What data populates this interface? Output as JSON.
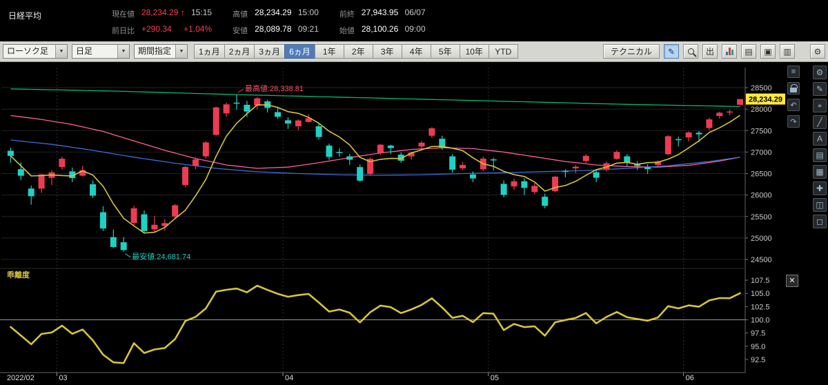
{
  "header": {
    "title": "日経平均",
    "current": {
      "label": "現在値",
      "value": "28,234.29",
      "arrow": "↑",
      "time": "15:15"
    },
    "change": {
      "label": "前日比",
      "value": "+290.34",
      "pct": "+1.04%"
    },
    "high": {
      "label": "高値",
      "value": "28,234.29",
      "time": "15:00"
    },
    "low": {
      "label": "安値",
      "value": "28,089.78",
      "time": "09:21"
    },
    "prev_close": {
      "label": "前終",
      "value": "27,943.95",
      "time": "06/07"
    },
    "open": {
      "label": "始値",
      "value": "28,100.26",
      "time": "09:00"
    }
  },
  "toolbar": {
    "chart_type": "ローソク足",
    "timeframe": "日足",
    "period_picker": "期間指定",
    "periods": [
      "1ヵ月",
      "2ヵ月",
      "3ヵ月",
      "6ヵ月",
      "1年",
      "2年",
      "3年",
      "4年",
      "5年",
      "10年",
      "YTD"
    ],
    "selected_period": "6ヵ月",
    "technical": "テクニカル"
  },
  "icons": {
    "toolbar": [
      {
        "name": "draw-pencil-icon",
        "glyph": "✎"
      },
      {
        "name": "zoom-icon",
        "glyph": ""
      },
      {
        "name": "popout-icon",
        "glyph": "出"
      },
      {
        "name": "mini-chart-icon",
        "glyph": ""
      },
      {
        "name": "report-icon",
        "glyph": "▤"
      },
      {
        "name": "save-icon",
        "glyph": "▣"
      },
      {
        "name": "print-icon",
        "glyph": "▥"
      },
      {
        "name": "settings-gear-icon",
        "glyph": "⚙"
      }
    ],
    "rail_inner": [
      {
        "name": "menu-icon",
        "glyph": "≡"
      },
      {
        "name": "lock-icon",
        "glyph": ""
      },
      {
        "name": "undo-icon",
        "glyph": "↶"
      },
      {
        "name": "redo-icon",
        "glyph": "↷"
      }
    ],
    "rail_outer": [
      {
        "name": "settings-gear-icon",
        "glyph": "⚙"
      },
      {
        "name": "draw-pencil-icon",
        "glyph": "✎"
      },
      {
        "name": "crosshair-icon",
        "glyph": "⌖"
      },
      {
        "name": "trend-line-icon",
        "glyph": "╱"
      },
      {
        "name": "text-tool-icon",
        "glyph": "A"
      },
      {
        "name": "indicator-icon",
        "glyph": "▤"
      },
      {
        "name": "grid-icon",
        "glyph": "▦"
      },
      {
        "name": "add-icon",
        "glyph": "✚"
      },
      {
        "name": "compare-icon",
        "glyph": "◫"
      },
      {
        "name": "snapshot-icon",
        "glyph": "◻"
      }
    ],
    "sub_close": "✕"
  },
  "colors": {
    "up": "#ef3b52",
    "down": "#1fd1c4",
    "ma_long": "#00b978",
    "ma_mid": "#ff5f9e",
    "ma_blue": "#3a6fd8",
    "ma_short": "#d6c53a",
    "price_tag_bg": "#ffe93d",
    "grid": "#232323",
    "axis": "#666666"
  },
  "chart_data": {
    "type": "candlestick",
    "title": "日経平均 日足 6ヵ月",
    "current_price": 28234.29,
    "y_axis": {
      "ticks": [
        28500,
        28000,
        27500,
        27000,
        26500,
        26000,
        25500,
        25000,
        24500
      ],
      "price_top": 28500,
      "price_bottom": 24500
    },
    "x_axis": {
      "labels": [
        {
          "index": 0,
          "label": "2022/02"
        },
        {
          "index": 5,
          "label": "03"
        },
        {
          "index": 27,
          "label": "04"
        },
        {
          "index": 47,
          "label": "05"
        },
        {
          "index": 66,
          "label": "06"
        }
      ]
    },
    "annotations": {
      "high": {
        "index": 22,
        "price": 28338.81,
        "label": "最高値:28,338.81"
      },
      "low": {
        "index": 11,
        "price": 24681.74,
        "label": "最安値:24,681.74"
      }
    },
    "candles": [
      [
        "02/21",
        27030,
        27100,
        26750,
        26911
      ],
      [
        "02/22",
        26600,
        26760,
        26350,
        26449
      ],
      [
        "02/24",
        26150,
        26220,
        25775,
        25971
      ],
      [
        "02/25",
        26150,
        26490,
        26050,
        26477
      ],
      [
        "02/28",
        26400,
        26580,
        26230,
        26527
      ],
      [
        "03/01",
        26650,
        26890,
        26590,
        26844
      ],
      [
        "03/02",
        26550,
        26640,
        26300,
        26393
      ],
      [
        "03/03",
        26450,
        26680,
        26430,
        26577
      ],
      [
        "03/04",
        26250,
        26340,
        25930,
        25985
      ],
      [
        "03/07",
        25600,
        25740,
        25160,
        25221
      ],
      [
        "03/08",
        25020,
        25200,
        24767,
        24790
      ],
      [
        "03/09",
        24900,
        25020,
        24681.74,
        24717
      ],
      [
        "03/10",
        25350,
        25750,
        25300,
        25690
      ],
      [
        "03/11",
        25550,
        25640,
        25100,
        25162
      ],
      [
        "03/14",
        25200,
        25510,
        25150,
        25307
      ],
      [
        "03/15",
        25280,
        25440,
        25170,
        25346
      ],
      [
        "03/16",
        25500,
        25790,
        25440,
        25762
      ],
      [
        "03/17",
        26230,
        26680,
        26190,
        26652
      ],
      [
        "03/18",
        26680,
        26880,
        26600,
        26827
      ],
      [
        "03/22",
        26900,
        27250,
        26850,
        27224
      ],
      [
        "03/23",
        27400,
        28060,
        27380,
        28040
      ],
      [
        "03/24",
        27900,
        28150,
        27820,
        28110
      ],
      [
        "03/25",
        28150,
        28338.81,
        27990,
        28149
      ],
      [
        "03/28",
        28100,
        28190,
        27820,
        27943
      ],
      [
        "03/29",
        28080,
        28280,
        28000,
        28252
      ],
      [
        "03/30",
        28180,
        28220,
        27920,
        28027
      ],
      [
        "03/31",
        27930,
        28040,
        27770,
        27821
      ],
      [
        "04/01",
        27740,
        27810,
        27540,
        27665
      ],
      [
        "04/04",
        27600,
        27760,
        27510,
        27736
      ],
      [
        "04/05",
        27700,
        27880,
        27690,
        27787
      ],
      [
        "04/06",
        27600,
        27650,
        27290,
        27350
      ],
      [
        "04/07",
        27150,
        27200,
        26820,
        26888
      ],
      [
        "04/08",
        27000,
        27090,
        26890,
        26985
      ],
      [
        "04/11",
        26900,
        26960,
        26700,
        26821
      ],
      [
        "04/12",
        26650,
        26710,
        26310,
        26334
      ],
      [
        "04/13",
        26490,
        26870,
        26460,
        26843
      ],
      [
        "04/14",
        26980,
        27180,
        26940,
        27172
      ],
      [
        "04/15",
        27150,
        27170,
        26950,
        27093
      ],
      [
        "04/18",
        26940,
        26990,
        26750,
        26799
      ],
      [
        "04/19",
        26900,
        27010,
        26820,
        26985
      ],
      [
        "04/20",
        27130,
        27260,
        27060,
        27217
      ],
      [
        "04/21",
        27380,
        27580,
        27330,
        27553
      ],
      [
        "04/22",
        27310,
        27380,
        27050,
        27105
      ],
      [
        "04/25",
        26900,
        26950,
        26520,
        26590
      ],
      [
        "04/26",
        26620,
        26770,
        26580,
        26700
      ],
      [
        "04/27",
        26480,
        26550,
        26300,
        26386
      ],
      [
        "04/28",
        26600,
        26890,
        26560,
        26847
      ],
      [
        "05/02",
        26830,
        26870,
        26570,
        26818
      ],
      [
        "05/06",
        26260,
        26340,
        25950,
        26003
      ],
      [
        "05/09",
        26200,
        26380,
        26120,
        26319
      ],
      [
        "05/10",
        26320,
        26390,
        26000,
        26167
      ],
      [
        "05/11",
        26070,
        26280,
        26020,
        26213
      ],
      [
        "05/12",
        25960,
        26030,
        25690,
        25748
      ],
      [
        "05/13",
        26090,
        26440,
        26060,
        26427
      ],
      [
        "05/16",
        26560,
        26600,
        26410,
        26547
      ],
      [
        "05/17",
        26620,
        26700,
        26510,
        26659
      ],
      [
        "05/18",
        26790,
        26950,
        26750,
        26911
      ],
      [
        "05/19",
        26530,
        26590,
        26300,
        26402
      ],
      [
        "05/20",
        26600,
        26780,
        26540,
        26739
      ],
      [
        "05/23",
        26840,
        27040,
        26820,
        27001
      ],
      [
        "05/24",
        26900,
        26950,
        26660,
        26748
      ],
      [
        "05/25",
        26720,
        26790,
        26580,
        26677
      ],
      [
        "05/26",
        26650,
        26720,
        26490,
        26604
      ],
      [
        "05/27",
        26700,
        26810,
        26640,
        26781
      ],
      [
        "05/30",
        26950,
        27390,
        26930,
        27369
      ],
      [
        "05/31",
        27300,
        27360,
        27130,
        27279
      ],
      [
        "06/01",
        27340,
        27480,
        27250,
        27457
      ],
      [
        "06/02",
        27450,
        27490,
        27230,
        27413
      ],
      [
        "06/03",
        27560,
        27800,
        27510,
        27761
      ],
      [
        "06/06",
        27840,
        27940,
        27780,
        27915
      ],
      [
        "06/07",
        27940,
        27985,
        27850,
        27943.95
      ],
      [
        "06/08",
        28100.26,
        28234.29,
        28089.78,
        28234.29
      ]
    ],
    "ma_lines": [
      {
        "name": "ma-long-green",
        "points": [
          [
            0,
            28470
          ],
          [
            10,
            28420
          ],
          [
            20,
            28350
          ],
          [
            30,
            28290
          ],
          [
            40,
            28230
          ],
          [
            50,
            28170
          ],
          [
            60,
            28110
          ],
          [
            71,
            28060
          ]
        ]
      },
      {
        "name": "ma-pink",
        "points": [
          [
            0,
            27850
          ],
          [
            3,
            27760
          ],
          [
            6,
            27640
          ],
          [
            9,
            27480
          ],
          [
            12,
            27260
          ],
          [
            15,
            27040
          ],
          [
            18,
            26850
          ],
          [
            21,
            26700
          ],
          [
            24,
            26620
          ],
          [
            27,
            26650
          ],
          [
            30,
            26750
          ],
          [
            33,
            26870
          ],
          [
            36,
            26980
          ],
          [
            39,
            27060
          ],
          [
            42,
            27100
          ],
          [
            45,
            27080
          ],
          [
            48,
            27000
          ],
          [
            51,
            26890
          ],
          [
            54,
            26780
          ],
          [
            57,
            26700
          ],
          [
            60,
            26660
          ],
          [
            63,
            26650
          ],
          [
            66,
            26690
          ],
          [
            69,
            26790
          ],
          [
            71,
            26880
          ]
        ]
      },
      {
        "name": "ma-blue",
        "points": [
          [
            0,
            27280
          ],
          [
            4,
            27180
          ],
          [
            8,
            27040
          ],
          [
            12,
            26880
          ],
          [
            16,
            26740
          ],
          [
            20,
            26620
          ],
          [
            24,
            26540
          ],
          [
            28,
            26500
          ],
          [
            32,
            26470
          ],
          [
            36,
            26460
          ],
          [
            40,
            26470
          ],
          [
            44,
            26500
          ],
          [
            48,
            26520
          ],
          [
            52,
            26545
          ],
          [
            56,
            26570
          ],
          [
            60,
            26620
          ],
          [
            64,
            26680
          ],
          [
            68,
            26780
          ],
          [
            71,
            26880
          ]
        ]
      },
      {
        "name": "ma-short-yellow",
        "compute": "ma5"
      }
    ],
    "sub_chart": {
      "name": "乖離度",
      "type": "line",
      "ticks": [
        "107.5",
        "105.0",
        "102.5",
        "100.0",
        "97.5",
        "95.0",
        "92.5"
      ],
      "baseline": 100,
      "derive": "close / ma-blue * 100"
    }
  }
}
